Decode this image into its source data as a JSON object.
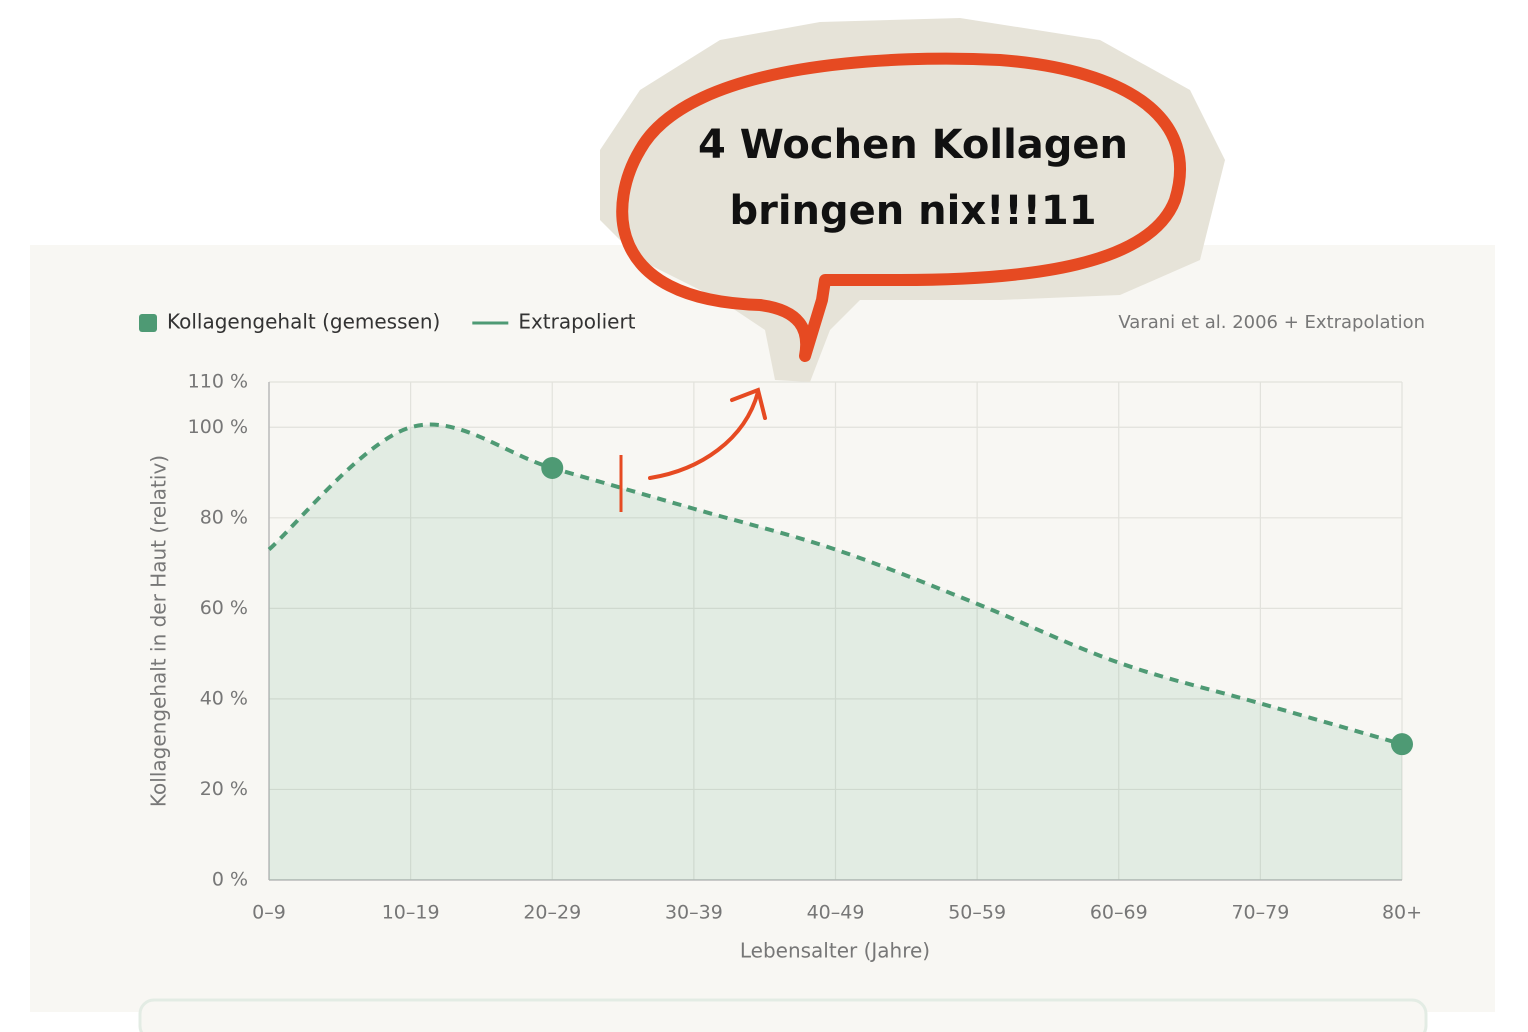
{
  "chart_data": {
    "type": "line",
    "source": "Varani et al. 2006 + Extrapolation",
    "x_label": "Lebensalter (Jahre)",
    "y_label": "Kollagengehalt in der Haut (relativ)",
    "categories": [
      "0–9",
      "10–19",
      "20–29",
      "30–39",
      "40–49",
      "50–59",
      "60–69",
      "70–79",
      "80+"
    ],
    "series": [
      {
        "name": "Kollagengehalt (gemessen)",
        "color": "#4e9a74",
        "style": "points",
        "values": [
          null,
          null,
          91,
          null,
          null,
          null,
          null,
          null,
          30
        ]
      },
      {
        "name": "Extrapoliert",
        "color": "#4e9a74",
        "style": "dashed",
        "values": [
          73,
          100,
          91,
          82,
          73,
          61,
          48,
          39,
          30
        ]
      }
    ],
    "ylim": [
      0,
      110
    ],
    "yticks": [
      {
        "value": 0,
        "label": "0 %"
      },
      {
        "value": 20,
        "label": "20 %"
      },
      {
        "value": 40,
        "label": "40 %"
      },
      {
        "value": 60,
        "label": "60 %"
      },
      {
        "value": 80,
        "label": "80 %"
      },
      {
        "value": 100,
        "label": "100 %"
      },
      {
        "value": 110,
        "label": "110 %"
      }
    ],
    "grid": true,
    "annotation": {
      "lines": [
        "4 Wochen Kollagen",
        "bringen nix!!!11"
      ],
      "color": "#e64a22"
    }
  }
}
